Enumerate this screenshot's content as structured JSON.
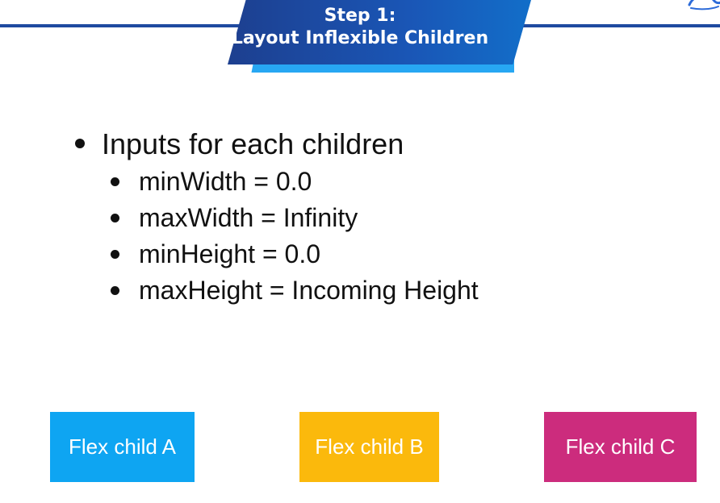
{
  "header": {
    "line1": "Step 1:",
    "line2": "Layout Inflexible Children"
  },
  "bullets": {
    "main": "Inputs for each children",
    "sub": [
      "minWidth = 0.0",
      "maxWidth = Infinity",
      "minHeight = 0.0",
      "maxHeight = Incoming Height"
    ]
  },
  "boxes": [
    {
      "label": "Flex child A",
      "color": "#0ea5f2"
    },
    {
      "label": "Flex child B",
      "color": "#fbb90c"
    },
    {
      "label": "Flex child C",
      "color": "#cc2c7d"
    }
  ],
  "colors": {
    "header_dark": "#1d3f8f",
    "header_accent": "#27a7f3"
  },
  "logo_icon": "logo-icon"
}
